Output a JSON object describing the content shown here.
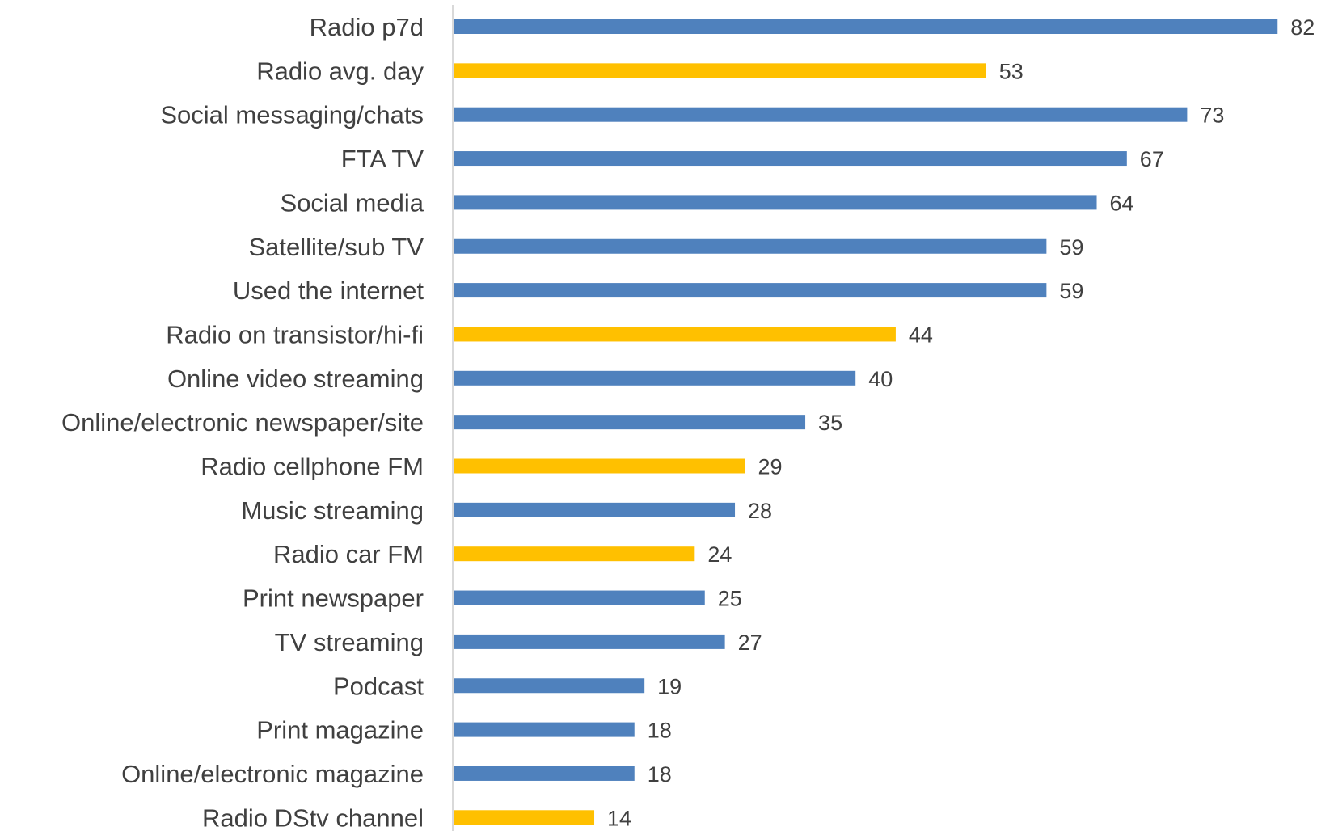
{
  "chart_data": {
    "type": "bar",
    "orientation": "horizontal",
    "categories": [
      "Radio p7d",
      "Radio avg. day",
      "Social messaging/chats",
      "FTA  TV",
      "Social media",
      "Satellite/sub TV",
      "Used the internet ",
      "Radio on transistor/hi-fi",
      "Online video streaming",
      "Online/electronic newspaper/site",
      "Radio cellphone FM",
      "Music streaming",
      "Radio car FM",
      "Print newspaper",
      "TV streaming",
      "Podcast",
      "Print magazine",
      "Online/electronic magazine",
      "Radio DStv channel"
    ],
    "values": [
      82,
      53,
      73,
      67,
      64,
      59,
      59,
      44,
      40,
      35,
      29,
      28,
      24,
      25,
      27,
      19,
      18,
      18,
      14
    ],
    "bar_color_keys": [
      "blue",
      "yellow",
      "blue",
      "blue",
      "blue",
      "blue",
      "blue",
      "yellow",
      "blue",
      "blue",
      "yellow",
      "blue",
      "yellow",
      "blue",
      "blue",
      "blue",
      "blue",
      "blue",
      "yellow"
    ],
    "colors": {
      "blue": "#4f81bd",
      "yellow": "#ffc000",
      "axis": "#d9d9d9"
    },
    "xlim": [
      0,
      82
    ],
    "grid": false,
    "data_labels": true,
    "title": "",
    "xlabel": "",
    "ylabel": ""
  }
}
